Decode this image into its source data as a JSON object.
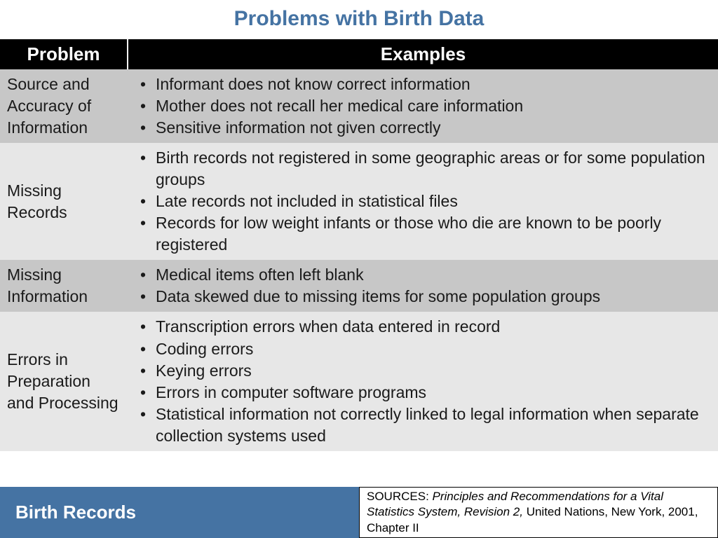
{
  "title": "Problems with Birth Data",
  "colors": {
    "title_color": "#4573a3",
    "header_bg": "#000000",
    "header_text": "#ffffff",
    "row_dark_bg": "#c7c7c7",
    "row_light_bg": "#e7e7e7",
    "footer_bg": "#4573a3"
  },
  "table": {
    "columns": [
      "Problem",
      "Examples"
    ],
    "rows": [
      {
        "problem": "Source and Accuracy of Information",
        "examples": [
          "Informant does not know correct information",
          "Mother does not recall her medical care information",
          "Sensitive information not given correctly"
        ]
      },
      {
        "problem": "Missing Records",
        "examples": [
          "Birth records not registered in some geographic areas or for some population groups",
          "Late records not included in statistical files",
          "Records for low weight infants or those who die are known to be poorly registered"
        ]
      },
      {
        "problem": "Missing Information",
        "examples": [
          "Medical items often left blank",
          "Data skewed due to missing items for some population groups"
        ]
      },
      {
        "problem": "Errors in Preparation and Processing",
        "examples": [
          "Transcription errors when data entered in record",
          "Coding errors",
          "Keying errors",
          "Errors in computer software programs",
          "Statistical information not correctly linked to legal information when separate collection systems used"
        ]
      }
    ]
  },
  "footer": {
    "section_label": "Birth Records",
    "source_label": "SOURCES: ",
    "source_italic": "Principles and Recommendations for a Vital Statistics System, Revision 2, ",
    "source_tail": "United Nations, New York, 2001, Chapter II"
  }
}
